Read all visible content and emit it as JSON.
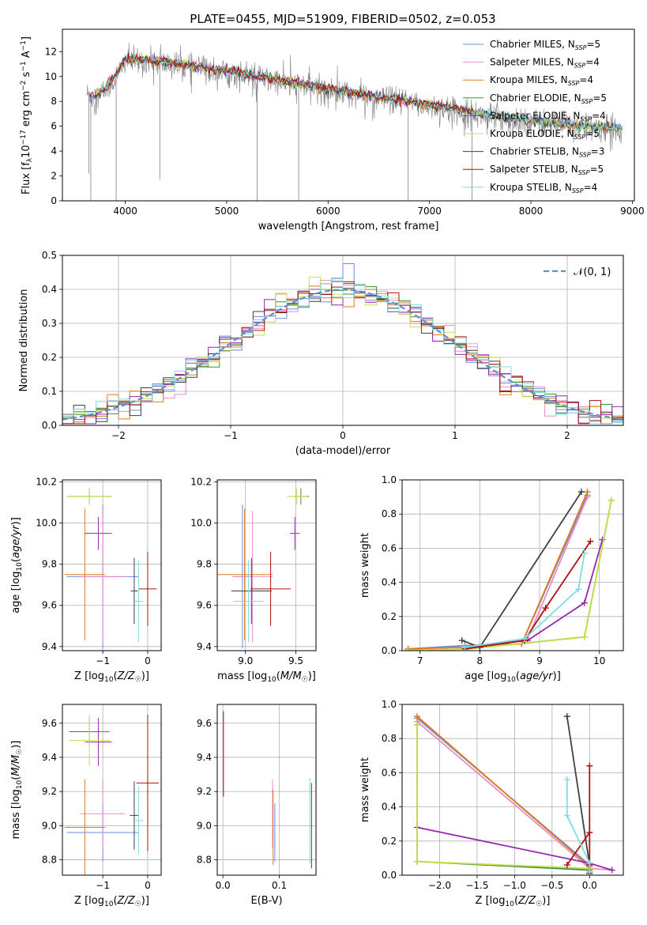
{
  "figure": {
    "title": "PLATE=0455, MJD=51909, FIBERID=0502, z=0.053"
  },
  "model_colors": {
    "Chabrier MILES": "#6b8fe0",
    "Salpeter MILES": "#e88cc8",
    "Kroupa MILES": "#e07b1a",
    "Chabrier ELODIE": "#3f8f3f",
    "Salpeter ELODIE": "#9b27b0",
    "Kroupa ELODIE": "#c8e04a",
    "Chabrier STELIB": "#404040",
    "Salpeter STELIB": "#b01010",
    "Kroupa STELIB": "#7fdde0",
    "data": "#808080"
  },
  "chart_data": [
    {
      "id": "spectrum",
      "type": "line",
      "xlabel": "wavelength [Angstrom, rest frame]",
      "ylabel": "Flux [f_λ10^-17 erg cm^-2 s^-1 A^-1]",
      "xlim": [
        3380,
        9020
      ],
      "ylim": [
        0,
        13.8
      ],
      "xticks": [
        4000,
        5000,
        6000,
        7000,
        8000,
        9000
      ],
      "yticks": [
        0,
        2,
        4,
        6,
        8,
        10,
        12
      ],
      "grid": false,
      "legend": {
        "placement": "top-right",
        "entries": [
          {
            "label": "Chabrier MILES, N_SSP=5",
            "color": "#6b8fe0"
          },
          {
            "label": "Salpeter MILES, N_SSP=4",
            "color": "#e88cc8"
          },
          {
            "label": "Kroupa MILES, N_SSP=4",
            "color": "#e07b1a"
          },
          {
            "label": "Chabrier ELODIE, N_SSP=5",
            "color": "#3f8f3f"
          },
          {
            "label": "Salpeter ELODIE, N_SSP=4",
            "color": "#9b27b0"
          },
          {
            "label": "Kroupa ELODIE, N_SSP=5",
            "color": "#c8e04a"
          },
          {
            "label": "Chabrier STELIB, N_SSP=3",
            "color": "#404040"
          },
          {
            "label": "Salpeter STELIB, N_SSP=5",
            "color": "#b01010"
          },
          {
            "label": "Kroupa STELIB, N_SSP=4",
            "color": "#7fdde0"
          }
        ]
      },
      "continuum": {
        "x": [
          3620,
          3700,
          3800,
          3900,
          4000,
          4200,
          4500,
          5000,
          5500,
          6000,
          6500,
          7000,
          7500,
          8000,
          8500,
          8900
        ],
        "y": [
          8.6,
          8.3,
          8.9,
          9.8,
          11.3,
          11.2,
          10.9,
          10.3,
          9.6,
          8.9,
          8.2,
          7.6,
          6.9,
          6.3,
          5.9,
          5.7
        ]
      },
      "model_start": [
        3620,
        3700,
        3700,
        3700,
        3700,
        3700,
        3700,
        3650,
        3700
      ],
      "model_end": [
        8900,
        8900,
        8900,
        8900,
        8900,
        8900,
        8900,
        7420,
        8900
      ]
    },
    {
      "id": "residuals",
      "type": "line",
      "xlabel": "(data-model)/error",
      "ylabel": "Normed distribution",
      "xlim": [
        -2.5,
        2.5
      ],
      "ylim": [
        0,
        0.5
      ],
      "xticks": [
        -2,
        -1,
        0,
        1,
        2
      ],
      "yticks": [
        0.0,
        0.1,
        0.2,
        0.3,
        0.4,
        0.5
      ],
      "grid": true,
      "legend": {
        "placement": "top-right",
        "entries": [
          {
            "label": "𝒩(0, 1)",
            "color": "#5b8fd6"
          }
        ]
      },
      "hist_bin_width": 0.1
    },
    {
      "id": "age_vs_Z",
      "type": "scatter",
      "xlabel": "Z [log10(Z/Z☉)]",
      "ylabel": "age  [log10(age/yr)]",
      "xlim": [
        -1.9,
        0.3
      ],
      "ylim": [
        9.38,
        10.21
      ],
      "xticks": [
        -1,
        0
      ],
      "yticks": [
        9.4,
        9.6,
        9.8,
        10.0,
        10.2
      ],
      "grid": true,
      "points": [
        {
          "model": "Chabrier MILES",
          "x": -1.0,
          "y": 9.74,
          "xerr": 0.8,
          "yerr": 0.35
        },
        {
          "model": "Salpeter MILES",
          "x": -1.0,
          "y": 9.74,
          "xerr": 0.5,
          "yerr": 0.32
        },
        {
          "model": "Kroupa MILES",
          "x": -1.4,
          "y": 9.75,
          "xerr": 0.45,
          "yerr": 0.32
        },
        {
          "model": "Chabrier ELODIE",
          "x": -1.3,
          "y": 10.13,
          "xerr": 0.5,
          "yerr": 0.04
        },
        {
          "model": "Salpeter ELODIE",
          "x": -1.1,
          "y": 9.95,
          "xerr": 0.3,
          "yerr": 0.08
        },
        {
          "model": "Kroupa ELODIE",
          "x": -1.3,
          "y": 10.13,
          "xerr": 0.5,
          "yerr": 0.04
        },
        {
          "model": "Chabrier STELIB",
          "x": -0.3,
          "y": 9.67,
          "xerr": 0.08,
          "yerr": 0.16
        },
        {
          "model": "Salpeter STELIB",
          "x": 0.0,
          "y": 9.68,
          "xerr": 0.2,
          "yerr": 0.18
        },
        {
          "model": "Kroupa STELIB",
          "x": -0.2,
          "y": 9.62,
          "xerr": 0.1,
          "yerr": 0.2
        }
      ]
    },
    {
      "id": "age_vs_mass",
      "type": "scatter",
      "xlabel": "mass [log10(M/M☉)]",
      "ylabel": "",
      "xlim": [
        8.72,
        9.7
      ],
      "ylim": [
        9.38,
        10.21
      ],
      "xticks": [
        9.0,
        9.5
      ],
      "yticks": [
        9.4,
        9.6,
        9.8,
        10.0,
        10.2
      ],
      "grid": true,
      "points": [
        {
          "model": "Chabrier MILES",
          "x": 8.97,
          "y": 9.74,
          "xerr": 0.1,
          "yerr": 0.35
        },
        {
          "model": "Salpeter MILES",
          "x": 9.07,
          "y": 9.74,
          "xerr": 0.2,
          "yerr": 0.32
        },
        {
          "model": "Kroupa MILES",
          "x": 8.99,
          "y": 9.75,
          "xerr": 0.28,
          "yerr": 0.32
        },
        {
          "model": "Chabrier ELODIE",
          "x": 9.55,
          "y": 10.13,
          "xerr": 0.08,
          "yerr": 0.04
        },
        {
          "model": "Salpeter ELODIE",
          "x": 9.49,
          "y": 9.95,
          "xerr": 0.05,
          "yerr": 0.08
        },
        {
          "model": "Kroupa ELODIE",
          "x": 9.51,
          "y": 10.13,
          "xerr": 0.1,
          "yerr": 0.04
        },
        {
          "model": "Chabrier STELIB",
          "x": 9.06,
          "y": 9.67,
          "xerr": 0.2,
          "yerr": 0.16
        },
        {
          "model": "Salpeter STELIB",
          "x": 9.25,
          "y": 9.68,
          "xerr": 0.2,
          "yerr": 0.18
        },
        {
          "model": "Kroupa STELIB",
          "x": 9.03,
          "y": 9.62,
          "xerr": 0.15,
          "yerr": 0.2
        }
      ]
    },
    {
      "id": "mass_weight_vs_age",
      "type": "line",
      "xlabel": "age  [log10(age/yr)]",
      "ylabel": "mass weight",
      "xlim": [
        6.7,
        10.4
      ],
      "ylim": [
        0,
        1.0
      ],
      "xticks": [
        7,
        8,
        9,
        10
      ],
      "yticks": [
        0.0,
        0.2,
        0.4,
        0.6,
        0.8,
        1.0
      ],
      "grid": true,
      "series": [
        {
          "model": "Chabrier MILES",
          "x": [
            6.8,
            7.75,
            8.7,
            9.8
          ],
          "y": [
            0.01,
            0.03,
            0.04,
            0.91
          ]
        },
        {
          "model": "Salpeter MILES",
          "x": [
            7.75,
            8.8,
            9.8
          ],
          "y": [
            0.02,
            0.07,
            0.9
          ]
        },
        {
          "model": "Kroupa MILES",
          "x": [
            6.8,
            7.75,
            8.7,
            9.8
          ],
          "y": [
            0.01,
            0.02,
            0.04,
            0.93
          ]
        },
        {
          "model": "Chabrier ELODIE",
          "x": [
            6.8,
            7.8,
            9.75,
            10.2
          ],
          "y": [
            0.0,
            0.01,
            0.08,
            0.88
          ]
        },
        {
          "model": "Salpeter ELODIE",
          "x": [
            7.75,
            8.8,
            9.75,
            10.05
          ],
          "y": [
            0.02,
            0.06,
            0.28,
            0.65
          ]
        },
        {
          "model": "Kroupa ELODIE",
          "x": [
            6.8,
            7.8,
            9.75,
            10.2
          ],
          "y": [
            0.0,
            0.01,
            0.08,
            0.88
          ]
        },
        {
          "model": "Chabrier STELIB",
          "x": [
            7.7,
            8.0,
            9.7
          ],
          "y": [
            0.06,
            0.02,
            0.93
          ]
        },
        {
          "model": "Salpeter STELIB",
          "x": [
            7.75,
            8.75,
            9.1,
            9.85
          ],
          "y": [
            0.01,
            0.06,
            0.25,
            0.64
          ]
        },
        {
          "model": "Kroupa STELIB",
          "x": [
            7.75,
            8.75,
            9.65,
            9.75
          ],
          "y": [
            0.02,
            0.07,
            0.36,
            0.57
          ]
        }
      ]
    },
    {
      "id": "mass_vs_Z",
      "type": "scatter",
      "xlabel": "Z [log10(Z/Z☉)]",
      "ylabel": "mass [log10(M/M☉)]",
      "xlim": [
        -1.9,
        0.3
      ],
      "ylim": [
        8.71,
        9.71
      ],
      "xticks": [
        -1,
        0
      ],
      "yticks": [
        8.8,
        9.0,
        9.2,
        9.4,
        9.6
      ],
      "grid": true,
      "points": [
        {
          "model": "Chabrier MILES",
          "x": -1.0,
          "y": 8.96,
          "xerr": 0.8,
          "yerr": 0.17
        },
        {
          "model": "Salpeter MILES",
          "x": -1.0,
          "y": 9.07,
          "xerr": 0.5,
          "yerr": 0.2
        },
        {
          "model": "Kroupa MILES",
          "x": -1.4,
          "y": 8.99,
          "xerr": 0.45,
          "yerr": 0.28
        },
        {
          "model": "Chabrier ELODIE",
          "x": -1.3,
          "y": 9.55,
          "xerr": 0.45,
          "yerr": 0.08
        },
        {
          "model": "Salpeter ELODIE",
          "x": -1.1,
          "y": 9.49,
          "xerr": 0.3,
          "yerr": 0.14
        },
        {
          "model": "Kroupa ELODIE",
          "x": -1.3,
          "y": 9.5,
          "xerr": 0.45,
          "yerr": 0.15
        },
        {
          "model": "Chabrier STELIB",
          "x": -0.3,
          "y": 9.06,
          "xerr": 0.1,
          "yerr": 0.2
        },
        {
          "model": "Salpeter STELIB",
          "x": 0.0,
          "y": 9.25,
          "xerr": 0.25,
          "yerr": 0.4
        },
        {
          "model": "Kroupa STELIB",
          "x": -0.2,
          "y": 9.03,
          "xerr": 0.1,
          "yerr": 0.2
        }
      ]
    },
    {
      "id": "mass_vs_ebv",
      "type": "scatter",
      "xlabel": "E(B-V)",
      "ylabel": "",
      "xlim": [
        -0.01,
        0.165
      ],
      "ylim": [
        8.71,
        9.71
      ],
      "xticks": [
        0.0,
        0.1
      ],
      "yticks": [
        8.8,
        9.0,
        9.2,
        9.4,
        9.6
      ],
      "grid": true,
      "points": [
        {
          "model": "Chabrier MILES",
          "x": 0.092,
          "y": 8.96,
          "xerr": 0.0,
          "yerr": 0.17
        },
        {
          "model": "Salpeter MILES",
          "x": 0.088,
          "y": 9.07,
          "xerr": 0.0,
          "yerr": 0.2
        },
        {
          "model": "Kroupa MILES",
          "x": 0.089,
          "y": 8.99,
          "xerr": 0.0,
          "yerr": 0.22
        },
        {
          "model": "Salpeter STELIB",
          "x": 0.001,
          "y": 9.42,
          "xerr": 0.0,
          "yerr": 0.25
        },
        {
          "model": "Chabrier STELIB",
          "x": 0.157,
          "y": 9.0,
          "xerr": 0.0,
          "yerr": 0.25
        },
        {
          "model": "Kroupa STELIB",
          "x": 0.154,
          "y": 9.03,
          "xerr": 0.0,
          "yerr": 0.25
        }
      ]
    },
    {
      "id": "mass_weight_vs_Z",
      "type": "line",
      "xlabel": "Z [log10(Z/Z☉)]",
      "ylabel": "mass weight",
      "xlim": [
        -2.5,
        0.45
      ],
      "ylim": [
        0,
        1.0
      ],
      "xticks": [
        -2.0,
        -1.5,
        -1.0,
        -0.5,
        0.0
      ],
      "yticks": [
        0.0,
        0.2,
        0.4,
        0.6,
        0.8,
        1.0
      ],
      "grid": true,
      "series": [
        {
          "model": "Chabrier MILES",
          "x": [
            -2.3,
            0.0,
            0.0
          ],
          "y": [
            0.92,
            0.06,
            0.01
          ]
        },
        {
          "model": "Salpeter MILES",
          "x": [
            -2.3,
            0.0,
            0.3
          ],
          "y": [
            0.9,
            0.04,
            0.03
          ]
        },
        {
          "model": "Kroupa MILES",
          "x": [
            -2.3,
            0.0,
            0.0
          ],
          "y": [
            0.93,
            0.05,
            0.01
          ]
        },
        {
          "model": "Chabrier ELODIE",
          "x": [
            -2.3,
            -2.3,
            0.0,
            0.0
          ],
          "y": [
            0.88,
            0.08,
            0.03,
            0.01
          ]
        },
        {
          "model": "Salpeter ELODIE",
          "x": [
            -2.3,
            0.0,
            0.3
          ],
          "y": [
            0.28,
            0.07,
            0.03
          ]
        },
        {
          "model": "Kroupa ELODIE",
          "x": [
            -2.3,
            -2.3,
            0.0,
            0.0
          ],
          "y": [
            0.88,
            0.08,
            0.04,
            0.01
          ]
        },
        {
          "model": "Chabrier STELIB",
          "x": [
            -0.3,
            0.0,
            0.0
          ],
          "y": [
            0.93,
            0.06,
            0.02
          ]
        },
        {
          "model": "Salpeter STELIB",
          "x": [
            -0.3,
            0.0,
            0.0,
            0.0
          ],
          "y": [
            0.06,
            0.25,
            0.64,
            0.01
          ]
        },
        {
          "model": "Kroupa STELIB",
          "x": [
            -0.3,
            -0.3,
            0.0,
            0.0
          ],
          "y": [
            0.56,
            0.35,
            0.07,
            0.02
          ]
        }
      ]
    }
  ]
}
